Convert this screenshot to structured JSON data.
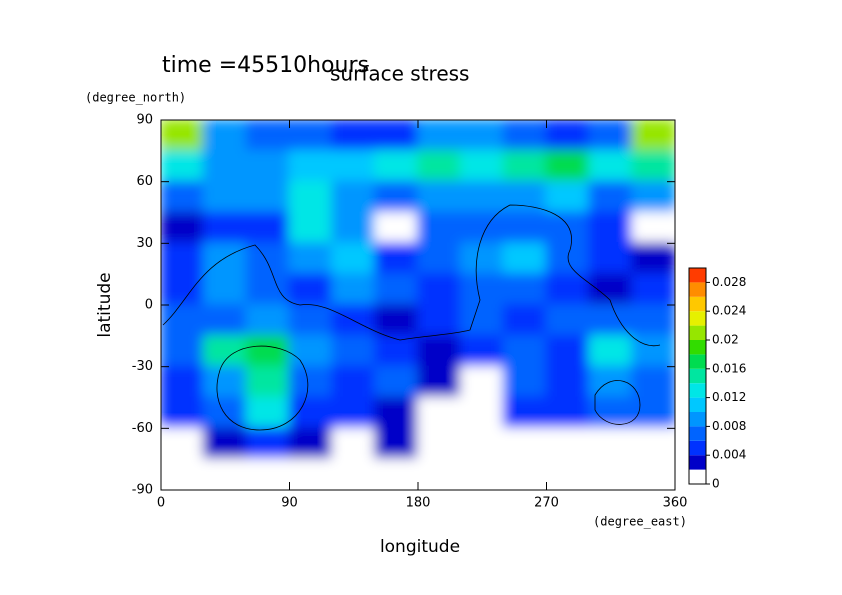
{
  "chart_data": {
    "type": "heatmap",
    "title": "surface stress",
    "subtitle": "time =45510hours",
    "x_label": "longitude",
    "x_units": "(degree_east)",
    "y_label": "latitude",
    "y_units": "(degree_north)",
    "xlim": [
      0,
      360
    ],
    "xticks": [
      0,
      90,
      180,
      270,
      360
    ],
    "ylim": [
      -90,
      90
    ],
    "yticks": [
      -90,
      -60,
      -30,
      0,
      30,
      60,
      90
    ],
    "z": [
      [
        0.02,
        0.008,
        0.006,
        0.006,
        0.005,
        0.005,
        0.008,
        0.008,
        0.006,
        0.005,
        0.006,
        0.02
      ],
      [
        0.012,
        0.008,
        0.008,
        0.01,
        0.01,
        0.012,
        0.014,
        0.012,
        0.014,
        0.016,
        0.012,
        0.014
      ],
      [
        0.006,
        0.008,
        0.008,
        0.012,
        0.008,
        0.006,
        0.008,
        0.008,
        0.008,
        0.01,
        0.006,
        0.008
      ],
      [
        0.002,
        0.004,
        0.004,
        0.012,
        0.008,
        0,
        0.006,
        0.006,
        0.006,
        0.006,
        0.004,
        0
      ],
      [
        0.004,
        0.008,
        0.006,
        0.008,
        0.01,
        0.004,
        0.006,
        0.008,
        0.01,
        0.006,
        0.004,
        0.002
      ],
      [
        0.004,
        0.008,
        0.006,
        0.004,
        0.008,
        0.006,
        0.004,
        0.006,
        0.006,
        0.004,
        0.002,
        0.004
      ],
      [
        0.006,
        0.006,
        0.008,
        0.006,
        0.004,
        0.002,
        0.004,
        0.006,
        0.004,
        0.006,
        0.006,
        0.006
      ],
      [
        0.006,
        0.014,
        0.016,
        0.008,
        0.006,
        0.004,
        0.002,
        0.004,
        0.006,
        0.004,
        0.012,
        0.008
      ],
      [
        0.004,
        0.008,
        0.014,
        0.006,
        0.004,
        0.006,
        0.002,
        0,
        0.006,
        0.004,
        0.008,
        0.006
      ],
      [
        0.004,
        0.006,
        0.012,
        0.004,
        0.004,
        0.002,
        0,
        0,
        0.004,
        0.004,
        0.006,
        0.006
      ],
      [
        0,
        0.002,
        0.004,
        0.002,
        0,
        0.002,
        0,
        0,
        0,
        0,
        0,
        0
      ],
      [
        0,
        0,
        0,
        0,
        0,
        0,
        0,
        0,
        0,
        0,
        0,
        0
      ]
    ],
    "colorbar_lim": [
      0,
      0.03
    ],
    "colorbar_ticks": [
      0,
      0.004,
      0.008,
      0.012,
      0.016,
      0.02,
      0.024,
      0.028
    ],
    "colors": [
      "#ffffff",
      "#0000c8",
      "#0032ff",
      "#0064ff",
      "#0096ff",
      "#00c8ff",
      "#00e6e6",
      "#00e6a0",
      "#00dc50",
      "#32dc00",
      "#96e600",
      "#e6f000",
      "#ffc800",
      "#ff8c00",
      "#ff3c00"
    ]
  }
}
